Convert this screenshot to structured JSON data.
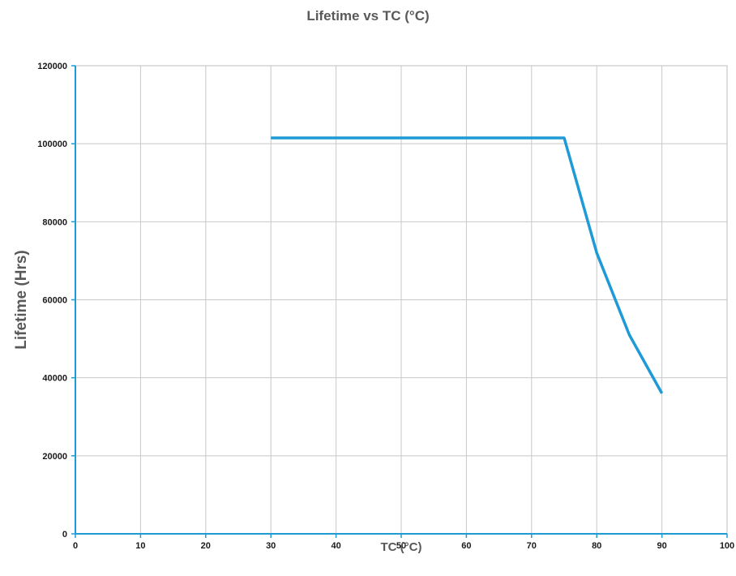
{
  "chart_data": {
    "type": "line",
    "title": "Lifetime vs TC (°C)",
    "xlabel": "TC (°C)",
    "ylabel": "Lifetime (Hrs)",
    "xlim": [
      0,
      100
    ],
    "ylim": [
      0,
      120000
    ],
    "x_ticks": [
      0,
      10,
      20,
      30,
      40,
      50,
      60,
      70,
      80,
      90,
      100
    ],
    "y_ticks": [
      0,
      20000,
      40000,
      60000,
      80000,
      100000,
      120000
    ],
    "x_tick_labels": [
      "0",
      "10",
      "20",
      "30",
      "40",
      "50",
      "60",
      "70",
      "80",
      "90",
      "100"
    ],
    "y_tick_labels": [
      "0",
      "20000",
      "40000",
      "60000",
      "80000",
      "100000",
      "120000"
    ],
    "grid": true,
    "legend": "none",
    "series": [
      {
        "color": "#1e9ad6",
        "points": [
          {
            "x": 30,
            "y": 101500
          },
          {
            "x": 75,
            "y": 101500
          },
          {
            "x": 80,
            "y": 72000
          },
          {
            "x": 85,
            "y": 51000
          },
          {
            "x": 90,
            "y": 36000
          }
        ]
      }
    ],
    "colors": {
      "grid": "#c8c8c8",
      "axis": "#1e9ad6",
      "border": "#bdbdbd",
      "tick_text": "#1a1a1a",
      "title_text": "#595959"
    }
  }
}
